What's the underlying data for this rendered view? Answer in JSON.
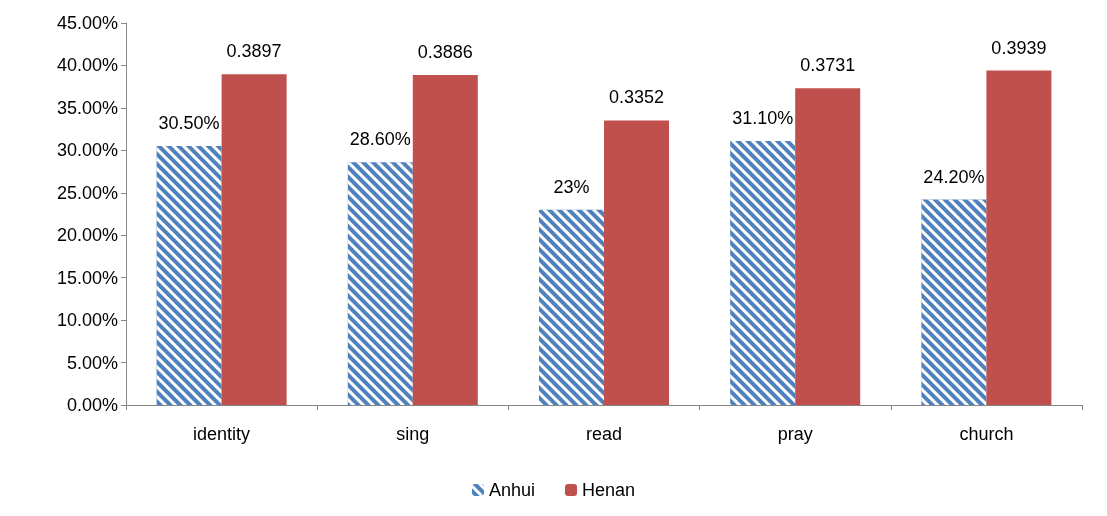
{
  "chart_data": {
    "type": "bar",
    "categories": [
      "identity",
      "sing",
      "read",
      "pray",
      "church"
    ],
    "series": [
      {
        "name": "Anhui",
        "color": "#4f81bd",
        "values": [
          0.305,
          0.286,
          0.23,
          0.311,
          0.242
        ],
        "value_labels": [
          "30.50%",
          "28.60%",
          "23%",
          "31.10%",
          "24.20%"
        ]
      },
      {
        "name": "Henan",
        "color": "#c0504d",
        "values": [
          0.3897,
          0.3886,
          0.3352,
          0.3731,
          0.3939
        ],
        "value_labels": [
          "0.3897",
          "0.3886",
          "0.3352",
          "0.3731",
          "0.3939"
        ]
      }
    ],
    "ylim": [
      0,
      0.45
    ],
    "yticks": [
      {
        "value": 0,
        "label": "0.00%"
      },
      {
        "value": 0.05,
        "label": "5.00%"
      },
      {
        "value": 0.1,
        "label": "10.00%"
      },
      {
        "value": 0.15,
        "label": "15.00%"
      },
      {
        "value": 0.2,
        "label": "20.00%"
      },
      {
        "value": 0.25,
        "label": "25.00%"
      },
      {
        "value": 0.3,
        "label": "30.00%"
      },
      {
        "value": 0.35,
        "label": "35.00%"
      },
      {
        "value": 0.4,
        "label": "40.00%"
      },
      {
        "value": 0.45,
        "label": "45.00%"
      }
    ],
    "grid": false,
    "legend": "bottom"
  }
}
